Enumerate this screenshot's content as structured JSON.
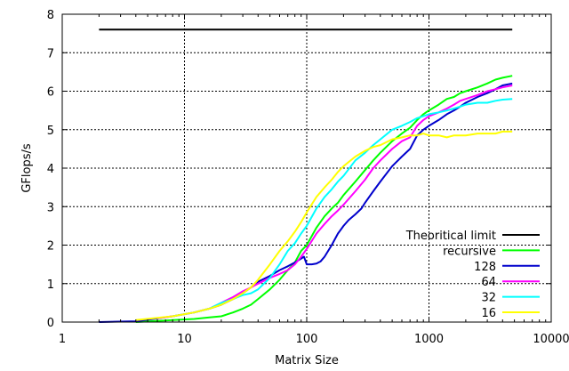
{
  "chart_data": {
    "type": "line",
    "xlabel": "Matrix Size",
    "ylabel": "GFlops/s",
    "xscale": "log",
    "xlim": [
      1,
      10000
    ],
    "ylim": [
      0,
      8
    ],
    "xticks": [
      1,
      10,
      100,
      1000,
      10000
    ],
    "xtick_labels": [
      "1",
      "10",
      "100",
      "1000",
      "10000"
    ],
    "yticks": [
      0,
      1,
      2,
      3,
      4,
      5,
      6,
      7,
      8
    ],
    "ytick_labels": [
      "0",
      "1",
      "2",
      "3",
      "4",
      "5",
      "6",
      "7",
      "8"
    ],
    "grid": true,
    "legend_position": "bottom-right",
    "series": [
      {
        "name": "Theoritical limit",
        "color": "#000000",
        "x": [
          2,
          4800
        ],
        "y": [
          7.6,
          7.6
        ]
      },
      {
        "name": "recursive",
        "color": "#00ff00",
        "x": [
          4,
          8,
          12,
          16,
          20,
          25,
          30,
          35,
          40,
          50,
          60,
          70,
          80,
          90,
          100,
          120,
          140,
          160,
          180,
          200,
          250,
          300,
          350,
          400,
          500,
          600,
          700,
          800,
          900,
          1000,
          1200,
          1400,
          1600,
          1800,
          2000,
          2500,
          3000,
          3500,
          4000,
          4800
        ],
        "y": [
          0.0,
          0.05,
          0.08,
          0.12,
          0.15,
          0.25,
          0.35,
          0.45,
          0.6,
          0.85,
          1.1,
          1.35,
          1.55,
          1.85,
          2.0,
          2.45,
          2.75,
          2.95,
          3.1,
          3.3,
          3.65,
          3.95,
          4.2,
          4.4,
          4.7,
          4.9,
          5.05,
          5.25,
          5.4,
          5.5,
          5.65,
          5.8,
          5.85,
          5.95,
          6.0,
          6.1,
          6.2,
          6.3,
          6.35,
          6.4
        ]
      },
      {
        "name": "128",
        "color": "#0000cc",
        "x": [
          2,
          4,
          8,
          12,
          16,
          20,
          25,
          30,
          35,
          40,
          50,
          60,
          70,
          80,
          90,
          95,
          100,
          110,
          120,
          130,
          140,
          160,
          180,
          200,
          220,
          250,
          280,
          300,
          350,
          400,
          500,
          600,
          700,
          800,
          900,
          1000,
          1200,
          1400,
          1600,
          1800,
          2000,
          2500,
          3000,
          3500,
          4000,
          4800
        ],
        "y": [
          0.0,
          0.02,
          0.15,
          0.25,
          0.35,
          0.45,
          0.6,
          0.75,
          0.9,
          1.05,
          1.2,
          1.35,
          1.45,
          1.55,
          1.65,
          1.7,
          1.5,
          1.5,
          1.52,
          1.58,
          1.7,
          2.0,
          2.3,
          2.5,
          2.65,
          2.8,
          2.95,
          3.1,
          3.4,
          3.65,
          4.05,
          4.3,
          4.5,
          4.85,
          5.0,
          5.1,
          5.25,
          5.4,
          5.5,
          5.6,
          5.7,
          5.85,
          5.95,
          6.05,
          6.15,
          6.2
        ]
      },
      {
        "name": "64",
        "color": "#ff00ff",
        "x": [
          6,
          8,
          12,
          16,
          20,
          25,
          30,
          35,
          40,
          50,
          60,
          70,
          80,
          90,
          100,
          120,
          140,
          160,
          180,
          200,
          250,
          300,
          350,
          400,
          500,
          600,
          700,
          800,
          900,
          1000,
          1200,
          1400,
          1600,
          1800,
          2000,
          2500,
          3000,
          3500,
          4000,
          4800
        ],
        "y": [
          0.1,
          0.15,
          0.25,
          0.35,
          0.5,
          0.65,
          0.8,
          0.9,
          1.0,
          1.15,
          1.25,
          1.35,
          1.5,
          1.7,
          1.9,
          2.3,
          2.55,
          2.75,
          2.9,
          3.05,
          3.4,
          3.7,
          4.0,
          4.2,
          4.5,
          4.7,
          4.8,
          5.1,
          5.25,
          5.35,
          5.45,
          5.55,
          5.65,
          5.75,
          5.8,
          5.9,
          6.0,
          6.05,
          6.1,
          6.15
        ]
      },
      {
        "name": "32",
        "color": "#00ffff",
        "x": [
          8,
          12,
          16,
          20,
          25,
          30,
          35,
          40,
          50,
          60,
          70,
          80,
          90,
          100,
          120,
          140,
          160,
          180,
          200,
          250,
          300,
          350,
          400,
          500,
          600,
          700,
          800,
          900,
          1000,
          1200,
          1400,
          1600,
          1800,
          2000,
          2500,
          3000,
          3500,
          4000,
          4800
        ],
        "y": [
          0.15,
          0.25,
          0.35,
          0.5,
          0.6,
          0.7,
          0.75,
          0.85,
          1.15,
          1.5,
          1.85,
          2.05,
          2.3,
          2.5,
          2.95,
          3.25,
          3.45,
          3.65,
          3.8,
          4.2,
          4.4,
          4.6,
          4.75,
          5.0,
          5.1,
          5.2,
          5.3,
          5.35,
          5.4,
          5.45,
          5.5,
          5.55,
          5.6,
          5.65,
          5.7,
          5.7,
          5.75,
          5.78,
          5.8
        ]
      },
      {
        "name": "16",
        "color": "#ffff00",
        "x": [
          4,
          8,
          12,
          16,
          20,
          25,
          30,
          35,
          40,
          50,
          60,
          70,
          80,
          90,
          100,
          120,
          140,
          160,
          180,
          200,
          250,
          300,
          350,
          400,
          500,
          600,
          700,
          800,
          900,
          1000,
          1200,
          1400,
          1600,
          1800,
          2000,
          2500,
          3000,
          3500,
          4000,
          4800
        ],
        "y": [
          0.05,
          0.15,
          0.25,
          0.35,
          0.45,
          0.6,
          0.75,
          0.9,
          1.1,
          1.5,
          1.85,
          2.1,
          2.35,
          2.6,
          2.85,
          3.25,
          3.5,
          3.7,
          3.9,
          4.05,
          4.3,
          4.45,
          4.55,
          4.6,
          4.75,
          4.8,
          4.85,
          4.85,
          4.9,
          4.85,
          4.85,
          4.8,
          4.85,
          4.85,
          4.85,
          4.9,
          4.9,
          4.9,
          4.95,
          4.95
        ]
      }
    ]
  }
}
